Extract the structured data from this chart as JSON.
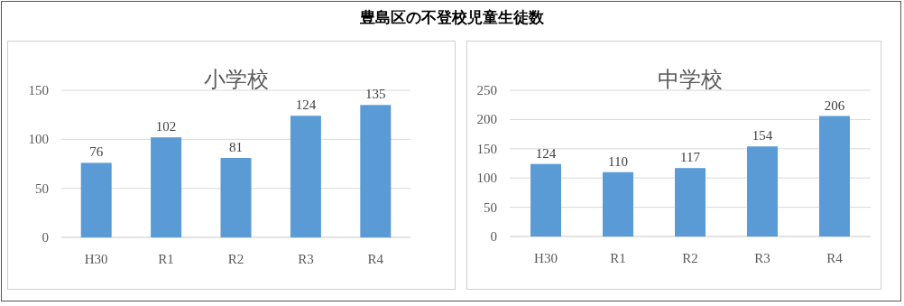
{
  "chart_data": [
    {
      "type": "other",
      "title": "豊島区の不登校児童生徒数"
    },
    {
      "type": "bar",
      "title": "小学校",
      "categories": [
        "H30",
        "R1",
        "R2",
        "R3",
        "R4"
      ],
      "values": [
        76,
        102,
        81,
        124,
        135
      ],
      "color": "#5b9bd5",
      "ylim": [
        0,
        150
      ],
      "yticks": [
        0,
        50,
        100,
        150
      ],
      "grid": "y",
      "data_labels": true
    },
    {
      "type": "bar",
      "title": "中学校",
      "categories": [
        "H30",
        "R1",
        "R2",
        "R3",
        "R4"
      ],
      "values": [
        124,
        110,
        117,
        154,
        206
      ],
      "color": "#5b9bd5",
      "ylim": [
        0,
        250
      ],
      "yticks": [
        0,
        50,
        100,
        150,
        200,
        250
      ],
      "grid": "y",
      "data_labels": true
    }
  ]
}
